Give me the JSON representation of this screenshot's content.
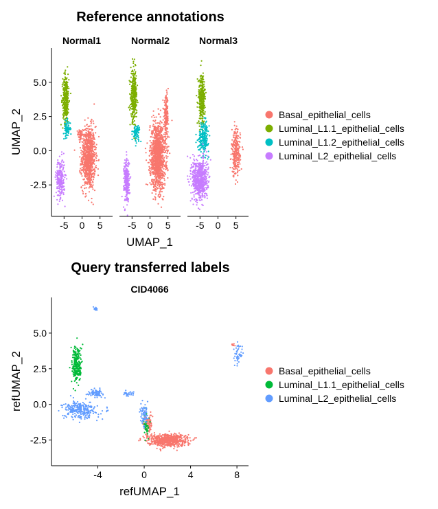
{
  "chart_data": [
    {
      "type": "scatter",
      "title": "Reference annotations",
      "xlabel": "UMAP_1",
      "ylabel": "UMAP_2",
      "facets": [
        "Normal1",
        "Normal2",
        "Normal3"
      ],
      "xticks": [
        -5,
        0,
        5
      ],
      "yticks": [
        5.0,
        2.5,
        0.0,
        -2.5
      ],
      "ytick_labels": [
        "5.0",
        "2.5",
        "0.0",
        "-2.5"
      ],
      "xlim": [
        -8.5,
        8.5
      ],
      "ylim": [
        -4.8,
        7.5
      ],
      "legend_position": "right",
      "series": [
        {
          "name": "Basal_epithelial_cells",
          "color": "#F8766D"
        },
        {
          "name": "Luminal_L1.1_epithelial_cells",
          "color": "#7CAE00"
        },
        {
          "name": "Luminal_L1.2_epithelial_cells",
          "color": "#00BFC4"
        },
        {
          "name": "Luminal_L2_epithelial_cells",
          "color": "#C77CFF"
        }
      ],
      "clusters": {
        "Normal1": [
          {
            "series": 0,
            "cx": 1.8,
            "cy": -0.5,
            "sx": 1.6,
            "sy": 1.9,
            "n": 900
          },
          {
            "series": 0,
            "cx": -0.5,
            "cy": 1.2,
            "sx": 0.6,
            "sy": 0.3,
            "n": 40
          },
          {
            "series": 1,
            "cx": -4.5,
            "cy": 3.8,
            "sx": 0.7,
            "sy": 1.5,
            "n": 360
          },
          {
            "series": 2,
            "cx": -4.2,
            "cy": 1.6,
            "sx": 0.8,
            "sy": 0.5,
            "n": 80
          },
          {
            "series": 3,
            "cx": -6.0,
            "cy": -2.0,
            "sx": 1.0,
            "sy": 1.2,
            "n": 230
          }
        ],
        "Normal2": [
          {
            "series": 0,
            "cx": 2.2,
            "cy": -0.4,
            "sx": 1.8,
            "sy": 2.0,
            "n": 1200
          },
          {
            "series": 0,
            "cx": 4.5,
            "cy": 2.5,
            "sx": 0.5,
            "sy": 1.2,
            "n": 160
          },
          {
            "series": 1,
            "cx": -4.5,
            "cy": 4.0,
            "sx": 0.7,
            "sy": 1.5,
            "n": 360
          },
          {
            "series": 2,
            "cx": -3.8,
            "cy": 1.3,
            "sx": 0.8,
            "sy": 0.5,
            "n": 80
          },
          {
            "series": 3,
            "cx": -6.5,
            "cy": -2.2,
            "sx": 0.6,
            "sy": 1.3,
            "n": 280
          }
        ],
        "Normal3": [
          {
            "series": 0,
            "cx": 5.0,
            "cy": -0.2,
            "sx": 1.0,
            "sy": 1.4,
            "n": 260
          },
          {
            "series": 1,
            "cx": -4.5,
            "cy": 3.8,
            "sx": 0.8,
            "sy": 1.5,
            "n": 330
          },
          {
            "series": 2,
            "cx": -4.0,
            "cy": 1.0,
            "sx": 1.2,
            "sy": 0.9,
            "n": 220
          },
          {
            "series": 3,
            "cx": -5.0,
            "cy": -2.1,
            "sx": 1.8,
            "sy": 1.3,
            "n": 650
          }
        ]
      }
    },
    {
      "type": "scatter",
      "title": "Query transferred labels",
      "xlabel": "refUMAP_1",
      "ylabel": "refUMAP_2",
      "facets": [
        "CID4066"
      ],
      "xticks": [
        -4,
        0,
        4,
        8
      ],
      "yticks": [
        5.0,
        2.5,
        0.0,
        -2.5
      ],
      "ytick_labels": [
        "5.0",
        "2.5",
        "0.0",
        "-2.5"
      ],
      "xlim": [
        -8.0,
        9.0
      ],
      "ylim": [
        -4.3,
        7.5
      ],
      "legend_position": "right",
      "series": [
        {
          "name": "Basal_epithelial_cells",
          "color": "#F8766D"
        },
        {
          "name": "Luminal_L1.1_epithelial_cells",
          "color": "#00BA38"
        },
        {
          "name": "Luminal_L2_epithelial_cells",
          "color": "#619CFF"
        }
      ],
      "clusters": [
        {
          "series": 0,
          "cx": 2.0,
          "cy": -2.5,
          "sx": 1.4,
          "sy": 0.35,
          "n": 650
        },
        {
          "series": 0,
          "cx": 0.3,
          "cy": -1.4,
          "sx": 0.3,
          "sy": 0.6,
          "n": 80
        },
        {
          "series": 0,
          "cx": 7.7,
          "cy": 4.2,
          "sx": 0.15,
          "sy": 0.15,
          "n": 8
        },
        {
          "series": 1,
          "cx": -5.8,
          "cy": 2.8,
          "sx": 0.35,
          "sy": 1.1,
          "n": 240
        },
        {
          "series": 1,
          "cx": 0.2,
          "cy": -1.6,
          "sx": 0.2,
          "sy": 0.6,
          "n": 40
        },
        {
          "series": 2,
          "cx": -5.5,
          "cy": -0.4,
          "sx": 1.2,
          "sy": 0.5,
          "n": 260
        },
        {
          "series": 2,
          "cx": -4.2,
          "cy": 0.8,
          "sx": 0.5,
          "sy": 0.2,
          "n": 100
        },
        {
          "series": 2,
          "cx": -4.2,
          "cy": 6.7,
          "sx": 0.15,
          "sy": 0.1,
          "n": 12
        },
        {
          "series": 2,
          "cx": -1.3,
          "cy": 0.7,
          "sx": 0.4,
          "sy": 0.15,
          "n": 30
        },
        {
          "series": 2,
          "cx": 0.0,
          "cy": -0.8,
          "sx": 0.3,
          "sy": 0.6,
          "n": 70
        },
        {
          "series": 2,
          "cx": 8.1,
          "cy": 3.5,
          "sx": 0.3,
          "sy": 0.7,
          "n": 45
        }
      ]
    }
  ]
}
